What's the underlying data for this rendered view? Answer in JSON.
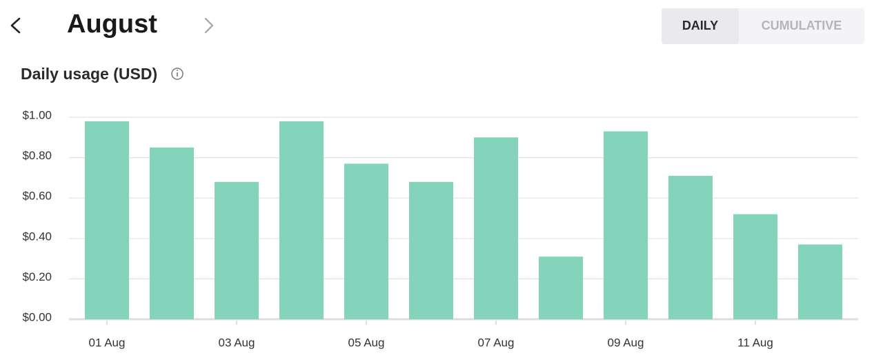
{
  "header": {
    "month": "August"
  },
  "toggle": {
    "options": [
      "DAILY",
      "CUMULATIVE"
    ],
    "selected": "DAILY"
  },
  "chart_data": {
    "type": "bar",
    "title": "Daily usage (USD)",
    "categories": [
      "01 Aug",
      null,
      "03 Aug",
      null,
      "05 Aug",
      null,
      "07 Aug",
      null,
      "09 Aug",
      null,
      "11 Aug",
      null
    ],
    "values": [
      0.98,
      0.85,
      0.68,
      0.98,
      0.77,
      0.68,
      0.9,
      0.31,
      0.93,
      0.71,
      0.52,
      0.37
    ],
    "color": "#84d4bc",
    "ylim": [
      0,
      1
    ],
    "yticks": [
      {
        "value": 0,
        "label": "$0.00"
      },
      {
        "value": 0.2,
        "label": "$0.20"
      },
      {
        "value": 0.4,
        "label": "$0.40"
      },
      {
        "value": 0.6,
        "label": "$0.60"
      },
      {
        "value": 0.8,
        "label": "$0.80"
      },
      {
        "value": 1,
        "label": "$1.00"
      }
    ],
    "grid": true
  }
}
